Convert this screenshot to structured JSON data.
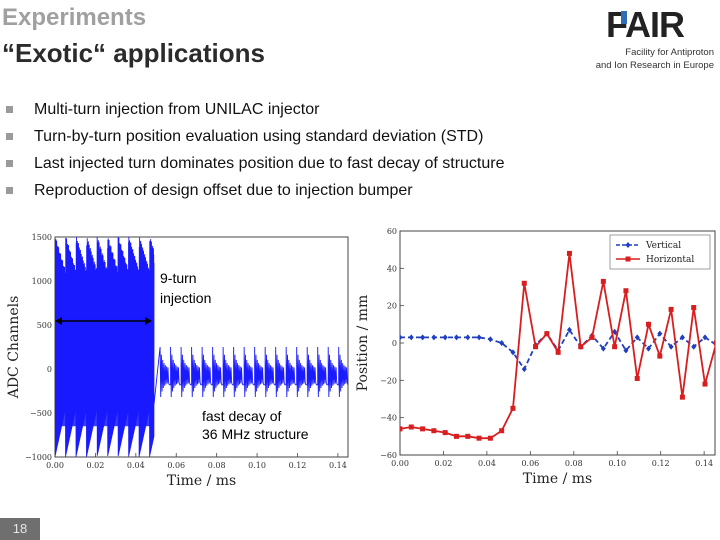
{
  "header": {
    "title": "Experiments",
    "subtitle": "“Exotic“ applications"
  },
  "logo": {
    "wordmark": "FAIR",
    "tagline_line1": "Facility for Antiproton",
    "tagline_line2": "and Ion Research in Europe"
  },
  "bullets": [
    "Multi-turn injection from UNILAC injector",
    "Turn-by-turn position evaluation using standard deviation (STD)",
    "Last injected turn dominates position due to fast decay of structure",
    "Reproduction of design offset due to injection bumper"
  ],
  "slide_number": "18",
  "colors": {
    "title_gray": "#a0a0a0",
    "bullet_square": "#9a9a9a",
    "signal_blue": "#1a1aff",
    "vertical_blue": "#1f3fbf",
    "horizontal_red": "#d81e1e",
    "fair_blue": "#2f6db5"
  },
  "chart_data": [
    {
      "type": "line",
      "description_visible": "ADC signal trace",
      "xlabel": "Time / ms",
      "ylabel": "ADC Channels",
      "xticks": [
        "0.00",
        "0.02",
        "0.04",
        "0.06",
        "0.08",
        "0.10",
        "0.12",
        "0.14"
      ],
      "yticks": [
        "1500",
        "1000",
        "500",
        "0",
        "−500",
        "−1000"
      ],
      "xlim": [
        0.0,
        0.145
      ],
      "ylim": [
        -1000,
        1500
      ],
      "annotations": [
        "9-turn injection",
        "fast decay of 36 MHz structure"
      ],
      "annotation_lines": {
        "injection_1": "9-turn",
        "injection_2": "injection",
        "decay_1": "fast decay of",
        "decay_2": "36 MHz structure"
      },
      "injection_span_ms": [
        0.0,
        0.048
      ],
      "signal": {
        "burst_envelope_max": 1450,
        "burst_envelope_min": -1000,
        "burst_end_ms": 0.049,
        "decay_peak": 250,
        "decay_floor": -360,
        "decay_pulse_spacing_ms": 0.0052,
        "decay_first_pulse_ms": 0.052
      }
    },
    {
      "type": "line",
      "xlabel": "Time / ms",
      "ylabel": "Position / mm",
      "xticks": [
        "0.00",
        "0.02",
        "0.04",
        "0.06",
        "0.08",
        "0.10",
        "0.12",
        "0.14"
      ],
      "yticks": [
        "60",
        "40",
        "20",
        "0",
        "−20",
        "−40",
        "−60"
      ],
      "xlim": [
        0.0,
        0.145
      ],
      "ylim": [
        -60,
        60
      ],
      "legend_position": "top-right",
      "series": [
        {
          "name": "Vertical",
          "style": "dashed",
          "marker": "diamond",
          "x": [
            0.0,
            0.0052,
            0.0104,
            0.0156,
            0.0208,
            0.026,
            0.0312,
            0.0364,
            0.0416,
            0.0468,
            0.052,
            0.0572,
            0.0624,
            0.0676,
            0.0728,
            0.078,
            0.0832,
            0.0884,
            0.0936,
            0.0988,
            0.104,
            0.1092,
            0.1144,
            0.1196,
            0.1248,
            0.13,
            0.1352,
            0.1404,
            0.1456
          ],
          "values": [
            3,
            3,
            3,
            3,
            3,
            3,
            3,
            3,
            2,
            0,
            -5,
            -14,
            -1,
            5,
            -4,
            7,
            -2,
            4,
            -3,
            6,
            -4,
            3,
            -3,
            5,
            -2,
            3,
            -2,
            3,
            -1
          ]
        },
        {
          "name": "Horizontal",
          "style": "solid",
          "marker": "square",
          "x": [
            0.0,
            0.0052,
            0.0104,
            0.0156,
            0.0208,
            0.026,
            0.0312,
            0.0364,
            0.0416,
            0.0468,
            0.052,
            0.0572,
            0.0624,
            0.0676,
            0.0728,
            0.078,
            0.0832,
            0.0884,
            0.0936,
            0.0988,
            0.104,
            0.1092,
            0.1144,
            0.1196,
            0.1248,
            0.13,
            0.1352,
            0.1404,
            0.1456
          ],
          "values": [
            -46,
            -45,
            -46,
            -47,
            -48,
            -50,
            -50,
            -51,
            -51,
            -47,
            -35,
            32,
            -2,
            5,
            -5,
            48,
            -2,
            3,
            33,
            -2,
            28,
            -19,
            10,
            -7,
            18,
            -29,
            19,
            -22,
            0
          ]
        }
      ]
    }
  ]
}
